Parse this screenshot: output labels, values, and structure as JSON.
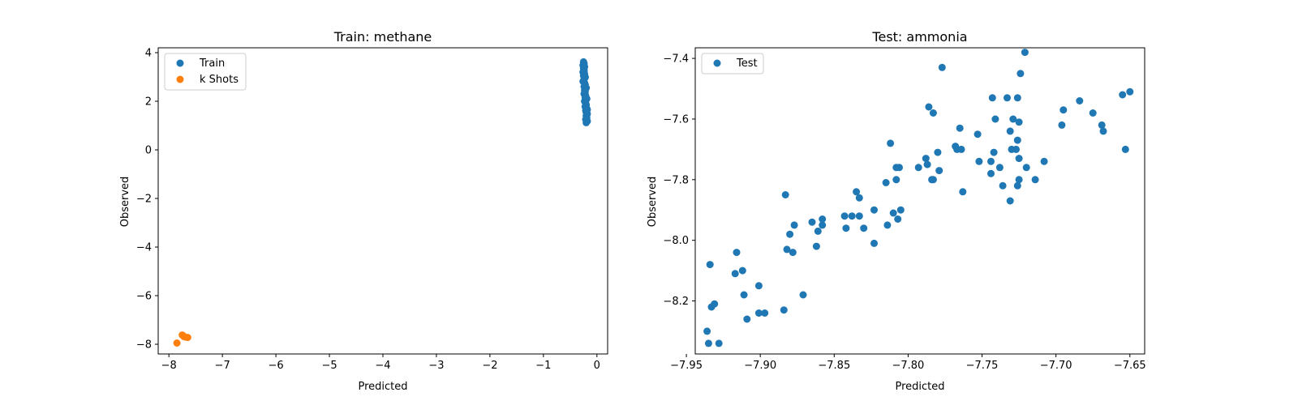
{
  "chart_data": [
    {
      "type": "scatter",
      "title": "Train: methane",
      "xlabel": "Predicted",
      "ylabel": "Observed",
      "xlim": [
        -8.2,
        0.2
      ],
      "ylim": [
        -8.4,
        4.2
      ],
      "xticks": [
        -8,
        -7,
        -6,
        -5,
        -4,
        -3,
        -2,
        -1,
        0
      ],
      "yticks": [
        -8,
        -6,
        -4,
        -2,
        0,
        2,
        4
      ],
      "legend": "top-left",
      "series": [
        {
          "name": "Train",
          "color": "#1f77b4",
          "points": [
            [
              -0.25,
              3.62
            ],
            [
              -0.24,
              3.55
            ],
            [
              -0.26,
              3.48
            ],
            [
              -0.23,
              3.42
            ],
            [
              -0.25,
              3.35
            ],
            [
              -0.24,
              3.28
            ],
            [
              -0.26,
              3.2
            ],
            [
              -0.23,
              3.12
            ],
            [
              -0.25,
              3.05
            ],
            [
              -0.22,
              2.98
            ],
            [
              -0.24,
              2.9
            ],
            [
              -0.26,
              2.82
            ],
            [
              -0.23,
              2.75
            ],
            [
              -0.22,
              2.68
            ],
            [
              -0.24,
              2.6
            ],
            [
              -0.21,
              2.52
            ],
            [
              -0.23,
              2.45
            ],
            [
              -0.22,
              2.38
            ],
            [
              -0.24,
              2.3
            ],
            [
              -0.21,
              2.22
            ],
            [
              -0.22,
              2.15
            ],
            [
              -0.2,
              2.08
            ],
            [
              -0.23,
              2.0
            ],
            [
              -0.21,
              1.92
            ],
            [
              -0.2,
              1.85
            ],
            [
              -0.22,
              1.78
            ],
            [
              -0.19,
              1.7
            ],
            [
              -0.21,
              1.62
            ],
            [
              -0.2,
              1.55
            ],
            [
              -0.18,
              1.48
            ],
            [
              -0.2,
              1.4
            ],
            [
              -0.19,
              1.32
            ],
            [
              -0.21,
              1.25
            ],
            [
              -0.18,
              1.18
            ],
            [
              -0.2,
              1.12
            ],
            [
              -0.22,
              3.0
            ],
            [
              -0.2,
              2.55
            ],
            [
              -0.19,
              2.1
            ],
            [
              -0.24,
              3.2
            ],
            [
              -0.18,
              1.65
            ]
          ]
        },
        {
          "name": "k Shots",
          "color": "#ff7f0e",
          "points": [
            [
              -7.85,
              -7.95
            ],
            [
              -7.75,
              -7.62
            ],
            [
              -7.7,
              -7.7
            ],
            [
              -7.65,
              -7.72
            ],
            [
              -7.72,
              -7.68
            ]
          ]
        }
      ]
    },
    {
      "type": "scatter",
      "title": "Test: ammonia",
      "xlabel": "Predicted",
      "ylabel": "Observed",
      "xlim": [
        -7.944,
        -7.64
      ],
      "ylim": [
        -8.375,
        -7.365
      ],
      "xticks": [
        -7.95,
        -7.9,
        -7.85,
        -7.8,
        -7.75,
        -7.7,
        -7.65
      ],
      "xtick_labels": [
        "−7.95",
        "−7.90",
        "−7.85",
        "−7.80",
        "−7.75",
        "−7.70",
        "−7.65"
      ],
      "yticks": [
        -8.2,
        -8.0,
        -7.8,
        -7.6,
        -7.4
      ],
      "ytick_labels": [
        "−8.2",
        "−8.0",
        "−7.8",
        "−7.6",
        "−7.4"
      ],
      "legend": "top-left",
      "series": [
        {
          "name": "Test",
          "color": "#1f77b4",
          "points": [
            [
              -7.936,
              -8.3
            ],
            [
              -7.935,
              -8.34
            ],
            [
              -7.928,
              -8.34
            ],
            [
              -7.934,
              -8.08
            ],
            [
              -7.933,
              -8.22
            ],
            [
              -7.931,
              -8.21
            ],
            [
              -7.916,
              -8.04
            ],
            [
              -7.917,
              -8.11
            ],
            [
              -7.912,
              -8.1
            ],
            [
              -7.911,
              -8.18
            ],
            [
              -7.909,
              -8.26
            ],
            [
              -7.901,
              -8.15
            ],
            [
              -7.901,
              -8.24
            ],
            [
              -7.897,
              -8.24
            ],
            [
              -7.884,
              -8.23
            ],
            [
              -7.883,
              -7.85
            ],
            [
              -7.882,
              -8.03
            ],
            [
              -7.88,
              -7.98
            ],
            [
              -7.878,
              -8.04
            ],
            [
              -7.877,
              -7.95
            ],
            [
              -7.871,
              -8.18
            ],
            [
              -7.865,
              -7.94
            ],
            [
              -7.862,
              -8.02
            ],
            [
              -7.861,
              -7.97
            ],
            [
              -7.858,
              -7.95
            ],
            [
              -7.858,
              -7.93
            ],
            [
              -7.843,
              -7.92
            ],
            [
              -7.842,
              -7.96
            ],
            [
              -7.838,
              -7.92
            ],
            [
              -7.835,
              -7.84
            ],
            [
              -7.833,
              -7.86
            ],
            [
              -7.833,
              -7.92
            ],
            [
              -7.83,
              -7.96
            ],
            [
              -7.823,
              -7.9
            ],
            [
              -7.823,
              -8.01
            ],
            [
              -7.815,
              -7.81
            ],
            [
              -7.814,
              -7.95
            ],
            [
              -7.812,
              -7.68
            ],
            [
              -7.81,
              -7.91
            ],
            [
              -7.808,
              -7.8
            ],
            [
              -7.808,
              -7.76
            ],
            [
              -7.807,
              -7.93
            ],
            [
              -7.806,
              -7.76
            ],
            [
              -7.805,
              -7.9
            ],
            [
              -7.793,
              -7.76
            ],
            [
              -7.788,
              -7.73
            ],
            [
              -7.787,
              -7.75
            ],
            [
              -7.786,
              -7.56
            ],
            [
              -7.784,
              -7.8
            ],
            [
              -7.783,
              -7.58
            ],
            [
              -7.783,
              -7.8
            ],
            [
              -7.78,
              -7.71
            ],
            [
              -7.779,
              -7.77
            ],
            [
              -7.777,
              -7.43
            ],
            [
              -7.768,
              -7.69
            ],
            [
              -7.767,
              -7.7
            ],
            [
              -7.765,
              -7.63
            ],
            [
              -7.764,
              -7.7
            ],
            [
              -7.763,
              -7.84
            ],
            [
              -7.753,
              -7.65
            ],
            [
              -7.752,
              -7.74
            ],
            [
              -7.744,
              -7.74
            ],
            [
              -7.744,
              -7.78
            ],
            [
              -7.743,
              -7.53
            ],
            [
              -7.742,
              -7.71
            ],
            [
              -7.741,
              -7.6
            ],
            [
              -7.738,
              -7.76
            ],
            [
              -7.736,
              -7.82
            ],
            [
              -7.733,
              -7.53
            ],
            [
              -7.731,
              -7.64
            ],
            [
              -7.731,
              -7.87
            ],
            [
              -7.73,
              -7.7
            ],
            [
              -7.729,
              -7.6
            ],
            [
              -7.727,
              -7.7
            ],
            [
              -7.726,
              -7.53
            ],
            [
              -7.726,
              -7.82
            ],
            [
              -7.726,
              -7.67
            ],
            [
              -7.725,
              -7.8
            ],
            [
              -7.725,
              -7.61
            ],
            [
              -7.725,
              -7.73
            ],
            [
              -7.724,
              -7.45
            ],
            [
              -7.721,
              -7.38
            ],
            [
              -7.72,
              -7.76
            ],
            [
              -7.714,
              -7.8
            ],
            [
              -7.708,
              -7.74
            ],
            [
              -7.696,
              -7.62
            ],
            [
              -7.695,
              -7.57
            ],
            [
              -7.684,
              -7.54
            ],
            [
              -7.675,
              -7.58
            ],
            [
              -7.669,
              -7.62
            ],
            [
              -7.668,
              -7.64
            ],
            [
              -7.655,
              -7.52
            ],
            [
              -7.653,
              -7.7
            ],
            [
              -7.65,
              -7.51
            ]
          ]
        }
      ]
    }
  ]
}
